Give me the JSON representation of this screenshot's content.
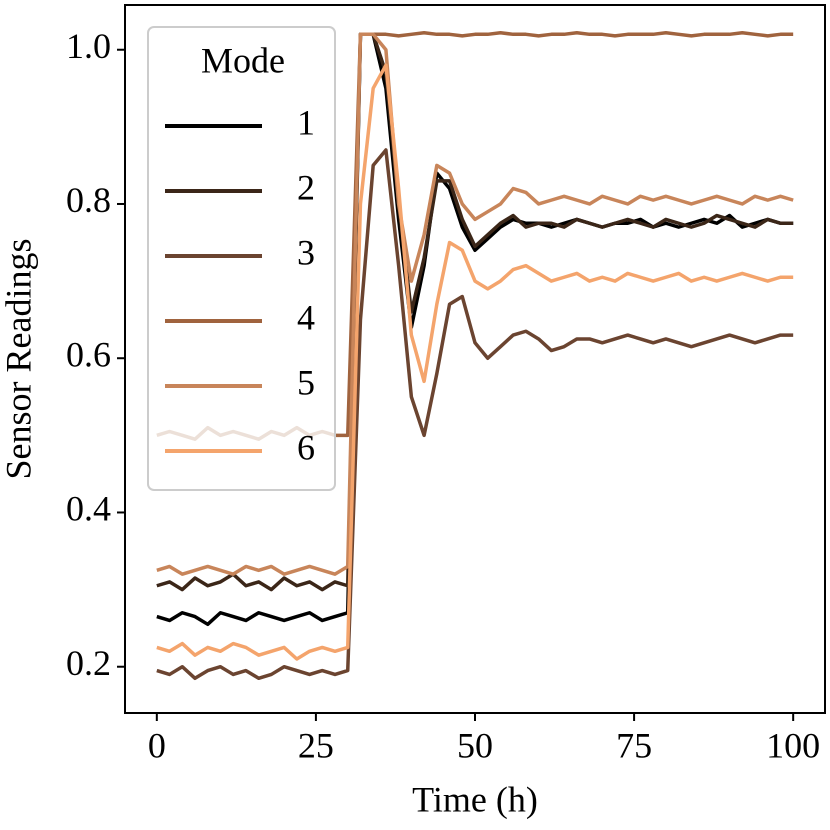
{
  "chart_data": {
    "type": "line",
    "x_label": "Time (h)",
    "y_label": "Sensor Readings",
    "legend_title": "Mode",
    "legend_position": "upper left",
    "x": [
      0,
      2,
      4,
      6,
      8,
      10,
      12,
      14,
      16,
      18,
      20,
      22,
      24,
      26,
      28,
      30,
      32,
      34,
      36,
      38,
      40,
      42,
      44,
      46,
      48,
      50,
      52,
      54,
      56,
      58,
      60,
      62,
      64,
      66,
      68,
      70,
      72,
      74,
      76,
      78,
      80,
      82,
      84,
      86,
      88,
      90,
      92,
      94,
      96,
      98,
      100
    ],
    "xlim": [
      -5,
      105
    ],
    "xticks": [
      0,
      25,
      50,
      75,
      100
    ],
    "ylim": [
      0.14,
      1.058
    ],
    "yticks": [
      0.2,
      0.4,
      0.6,
      0.8,
      {
        "value": 1,
        "label": "1.0"
      }
    ],
    "series": [
      {
        "name": "1",
        "color": "#000000",
        "values": [
          0.265,
          0.26,
          0.27,
          0.265,
          0.255,
          0.27,
          0.265,
          0.26,
          0.27,
          0.265,
          0.26,
          0.265,
          0.27,
          0.26,
          0.265,
          0.27,
          1.02,
          1.02,
          0.95,
          0.78,
          0.64,
          0.72,
          0.84,
          0.82,
          0.77,
          0.74,
          0.755,
          0.77,
          0.78,
          0.775,
          0.775,
          0.77,
          0.775,
          0.78,
          0.775,
          0.77,
          0.775,
          0.775,
          0.78,
          0.77,
          0.775,
          0.77,
          0.775,
          0.78,
          0.775,
          0.785,
          0.77,
          0.775,
          0.78,
          0.775,
          0.775
        ]
      },
      {
        "name": "2",
        "color": "#3b2618",
        "values": [
          0.305,
          0.31,
          0.3,
          0.315,
          0.305,
          0.31,
          0.32,
          0.305,
          0.31,
          0.3,
          0.315,
          0.305,
          0.31,
          0.3,
          0.31,
          0.305,
          1.02,
          1.02,
          0.97,
          0.8,
          0.66,
          0.73,
          0.83,
          0.83,
          0.78,
          0.745,
          0.76,
          0.775,
          0.785,
          0.77,
          0.775,
          0.775,
          0.77,
          0.78,
          0.775,
          0.77,
          0.775,
          0.78,
          0.775,
          0.77,
          0.78,
          0.775,
          0.77,
          0.775,
          0.785,
          0.78,
          0.775,
          0.77,
          0.78,
          0.775,
          0.775
        ]
      },
      {
        "name": "3",
        "color": "#6b4430",
        "values": [
          0.195,
          0.19,
          0.2,
          0.185,
          0.195,
          0.2,
          0.19,
          0.195,
          0.185,
          0.19,
          0.2,
          0.195,
          0.19,
          0.195,
          0.19,
          0.195,
          0.65,
          0.85,
          0.87,
          0.72,
          0.55,
          0.5,
          0.58,
          0.67,
          0.68,
          0.62,
          0.6,
          0.615,
          0.63,
          0.635,
          0.625,
          0.61,
          0.615,
          0.625,
          0.625,
          0.62,
          0.625,
          0.63,
          0.625,
          0.62,
          0.625,
          0.62,
          0.615,
          0.62,
          0.625,
          0.63,
          0.625,
          0.62,
          0.625,
          0.63,
          0.63
        ]
      },
      {
        "name": "4",
        "color": "#a0633e",
        "values": [
          0.5,
          0.505,
          0.5,
          0.495,
          0.51,
          0.5,
          0.505,
          0.5,
          0.495,
          0.505,
          0.5,
          0.51,
          0.5,
          0.505,
          0.5,
          0.5,
          1.02,
          1.02,
          1.02,
          1.018,
          1.02,
          1.022,
          1.02,
          1.02,
          1.018,
          1.02,
          1.02,
          1.022,
          1.02,
          1.02,
          1.018,
          1.02,
          1.02,
          1.022,
          1.02,
          1.02,
          1.018,
          1.02,
          1.02,
          1.02,
          1.022,
          1.02,
          1.018,
          1.02,
          1.02,
          1.02,
          1.022,
          1.02,
          1.018,
          1.02,
          1.02
        ]
      },
      {
        "name": "5",
        "color": "#c8855a",
        "values": [
          0.325,
          0.33,
          0.32,
          0.325,
          0.33,
          0.325,
          0.32,
          0.33,
          0.325,
          0.33,
          0.32,
          0.325,
          0.33,
          0.325,
          0.32,
          0.33,
          1.02,
          1.02,
          1.0,
          0.8,
          0.7,
          0.76,
          0.85,
          0.84,
          0.8,
          0.78,
          0.79,
          0.8,
          0.82,
          0.815,
          0.8,
          0.805,
          0.81,
          0.805,
          0.8,
          0.81,
          0.805,
          0.8,
          0.81,
          0.805,
          0.81,
          0.805,
          0.8,
          0.805,
          0.81,
          0.805,
          0.8,
          0.81,
          0.805,
          0.81,
          0.805
        ]
      },
      {
        "name": "6",
        "color": "#f4a46c",
        "values": [
          0.225,
          0.22,
          0.23,
          0.215,
          0.225,
          0.22,
          0.23,
          0.225,
          0.215,
          0.22,
          0.225,
          0.21,
          0.22,
          0.225,
          0.22,
          0.225,
          0.8,
          0.95,
          0.98,
          0.82,
          0.63,
          0.57,
          0.67,
          0.75,
          0.74,
          0.7,
          0.69,
          0.7,
          0.715,
          0.72,
          0.71,
          0.7,
          0.705,
          0.71,
          0.7,
          0.705,
          0.7,
          0.71,
          0.705,
          0.7,
          0.705,
          0.71,
          0.7,
          0.705,
          0.7,
          0.705,
          0.71,
          0.705,
          0.7,
          0.705,
          0.705
        ]
      }
    ]
  }
}
